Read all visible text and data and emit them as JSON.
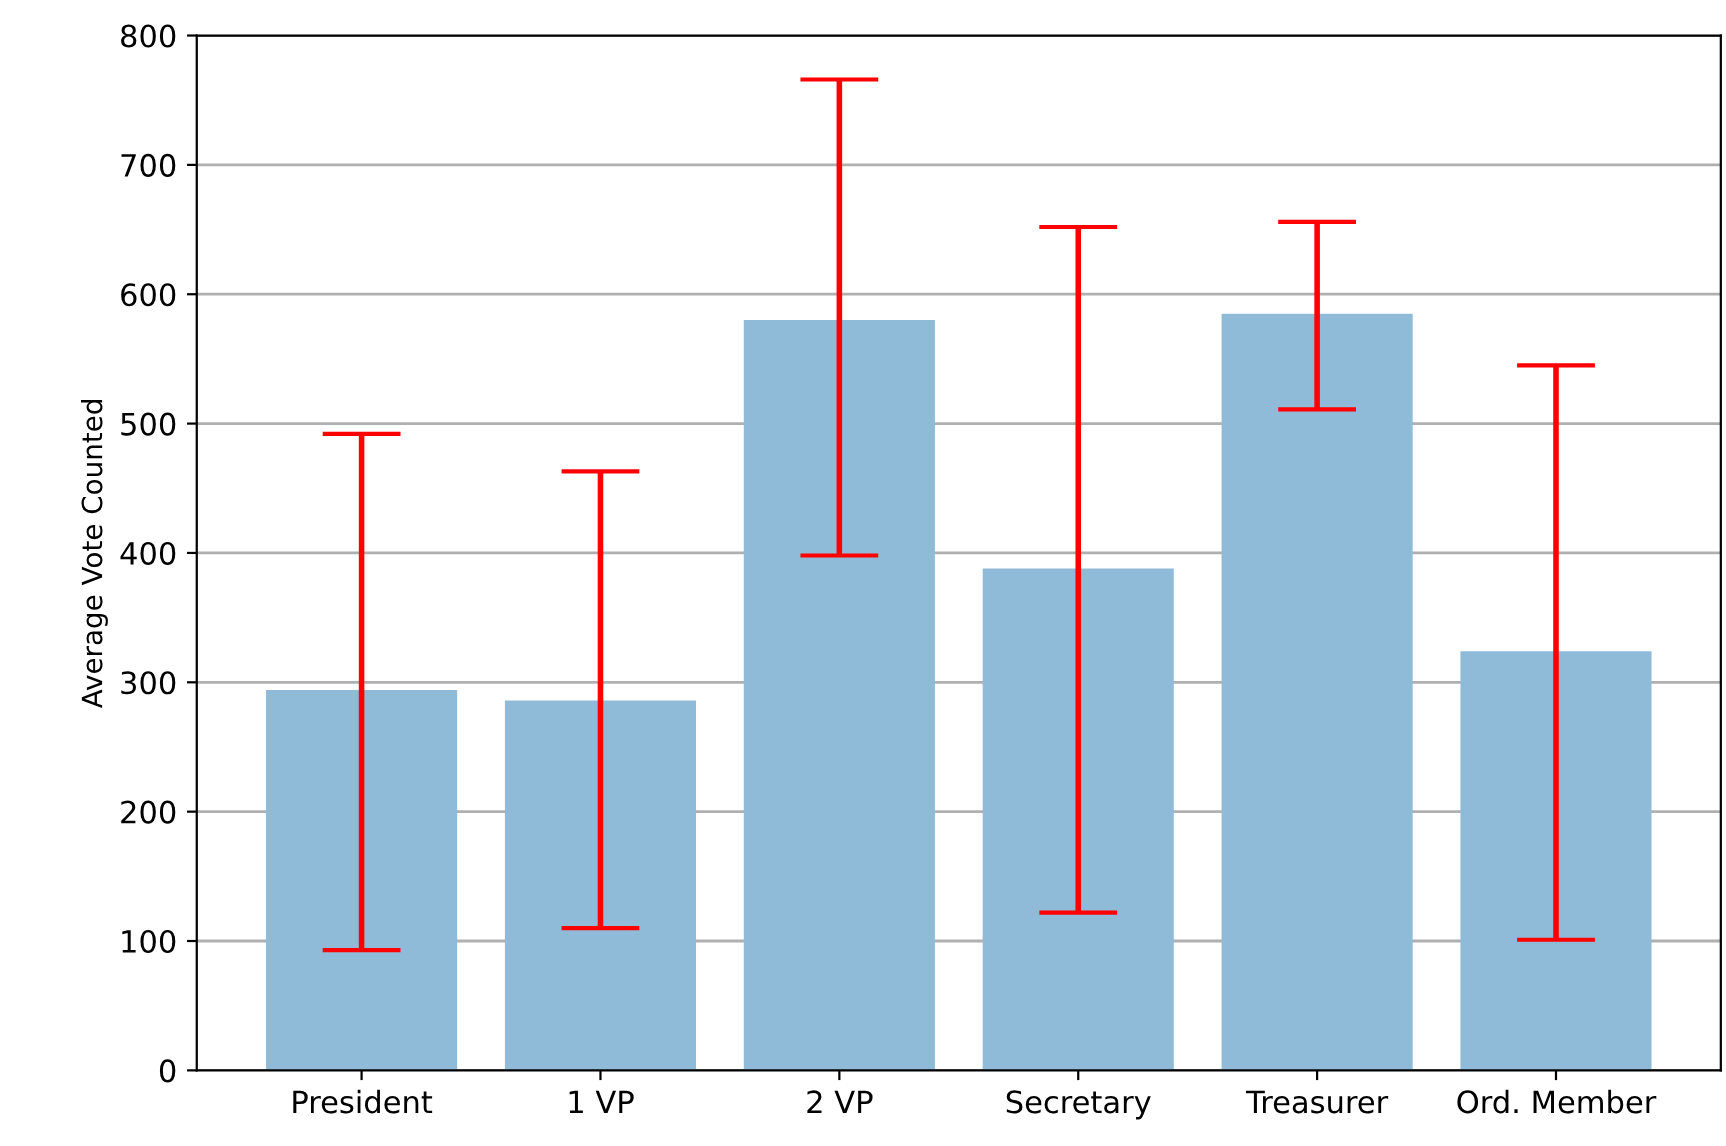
{
  "chart_data": {
    "type": "bar",
    "ylabel": "Average Vote Counted",
    "categories": [
      "President",
      "1 VP",
      "2 VP",
      "Secretary",
      "Treasurer",
      "Ord. Member"
    ],
    "values": [
      294,
      286,
      580,
      388,
      585,
      324
    ],
    "errors": [
      [
        93,
        492
      ],
      [
        110,
        463
      ],
      [
        398,
        766
      ],
      [
        122,
        652
      ],
      [
        511,
        656
      ],
      [
        101,
        545
      ]
    ],
    "color": "#8fbbd9",
    "ylim": [
      0,
      800
    ],
    "yticks": [
      0,
      100,
      200,
      300,
      400,
      500,
      600,
      700,
      800
    ],
    "grid": "y"
  }
}
